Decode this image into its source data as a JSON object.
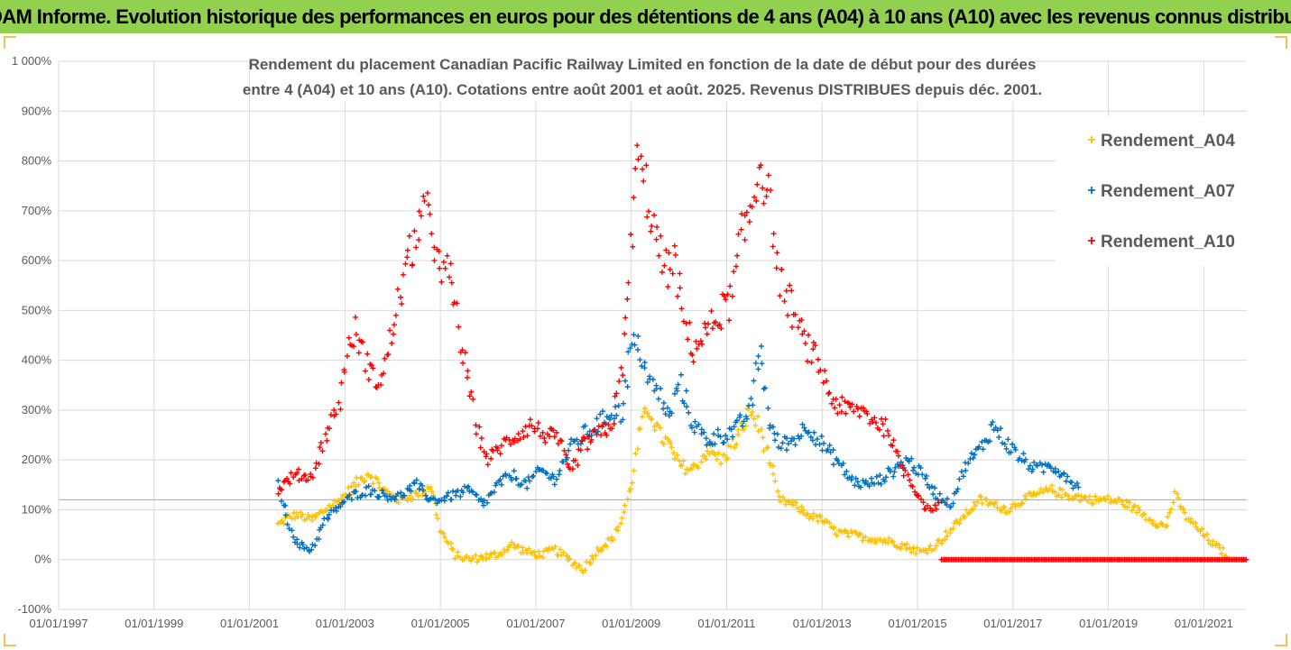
{
  "banner": {
    "title": "ADAM Informe. Evolution historique des performances en euros pour des détentions de 4 ans (A04) à 10 ans (A10) avec les revenus connus distribués"
  },
  "colors": {
    "banner_bg": "#92d050",
    "A04": "#ffc000",
    "A07": "#0070c0",
    "A10": "#ff0000",
    "reference_line": "#a6a6a6",
    "text": "#595959"
  },
  "chart_data": {
    "type": "scatter",
    "title_lines": [
      "Rendement du placement Canadian Pacific Railway Limited en fonction de la date de début pour des durées",
      "entre 4 (A04) et 10 ans (A10). Cotations entre août 2001 et août. 2025. Revenus DISTRIBUES depuis déc. 2001."
    ],
    "ytick_labels": [
      "1 000%",
      "900%",
      "800%",
      "700%",
      "600%",
      "500%",
      "400%",
      "300%",
      "200%",
      "100%",
      "0%",
      "-100%"
    ],
    "ytick_values": [
      1000,
      900,
      800,
      700,
      600,
      500,
      400,
      300,
      200,
      100,
      0,
      -100
    ],
    "xtick_labels": [
      "01/01/1997",
      "01/01/1999",
      "01/01/2001",
      "01/01/2003",
      "01/01/2005",
      "01/01/2007",
      "01/01/2009",
      "01/01/2011",
      "01/01/2013",
      "01/01/2015",
      "01/01/2017",
      "01/01/2019",
      "01/01/2021"
    ],
    "xtick_years": [
      1997,
      1999,
      2001,
      2003,
      2005,
      2007,
      2009,
      2011,
      2013,
      2015,
      2017,
      2019,
      2021
    ],
    "xlim": [
      1997,
      2021.9
    ],
    "ylim": [
      -100,
      1000
    ],
    "grid": "vertical and horizontal",
    "legend_position": "right",
    "reference_line_y": 120,
    "series": [
      {
        "name": "Rendement_A04",
        "color": "#ffc000",
        "x": [
          2001.6,
          2001.8,
          2002.0,
          2002.3,
          2002.6,
          2002.9,
          2003.2,
          2003.5,
          2003.8,
          2004.1,
          2004.5,
          2004.8,
          2005.0,
          2005.3,
          2005.6,
          2005.9,
          2006.2,
          2006.5,
          2006.8,
          2007.1,
          2007.4,
          2007.7,
          2008.0,
          2008.3,
          2008.6,
          2008.8,
          2009.0,
          2009.2,
          2009.4,
          2009.6,
          2009.8,
          2010.0,
          2010.3,
          2010.6,
          2010.9,
          2011.2,
          2011.5,
          2011.7,
          2011.9,
          2012.1,
          2012.4,
          2012.7,
          2013.0,
          2013.3,
          2013.6,
          2013.9,
          2014.2,
          2014.5,
          2014.8,
          2015.1,
          2015.4,
          2015.7,
          2016.0,
          2016.3,
          2016.6,
          2016.9,
          2017.2,
          2017.5,
          2017.8,
          2018.1,
          2018.4,
          2018.7,
          2019.0,
          2019.3,
          2019.6,
          2019.9,
          2020.2,
          2020.4,
          2020.6,
          2020.9,
          2021.2,
          2021.5
        ],
        "y": [
          70,
          85,
          90,
          80,
          100,
          120,
          150,
          175,
          140,
          120,
          130,
          150,
          60,
          10,
          0,
          5,
          10,
          30,
          15,
          10,
          20,
          0,
          -20,
          20,
          40,
          80,
          150,
          270,
          300,
          250,
          230,
          190,
          180,
          220,
          200,
          240,
          300,
          260,
          200,
          120,
          110,
          90,
          80,
          55,
          50,
          45,
          40,
          35,
          25,
          15,
          30,
          60,
          90,
          120,
          110,
          100,
          120,
          130,
          140,
          130,
          125,
          120,
          120,
          115,
          100,
          80,
          65,
          130,
          90,
          60,
          30,
          10
        ]
      },
      {
        "name": "Rendement_A07",
        "color": "#0070c0",
        "x": [
          2001.6,
          2001.8,
          2002.0,
          2002.3,
          2002.6,
          2002.9,
          2003.2,
          2003.5,
          2003.8,
          2004.1,
          2004.5,
          2004.8,
          2005.0,
          2005.3,
          2005.6,
          2005.9,
          2006.2,
          2006.5,
          2006.8,
          2007.1,
          2007.4,
          2007.7,
          2008.0,
          2008.3,
          2008.6,
          2008.8,
          2009.0,
          2009.2,
          2009.4,
          2009.6,
          2009.8,
          2010.0,
          2010.3,
          2010.6,
          2010.9,
          2011.2,
          2011.5,
          2011.7,
          2011.9,
          2012.1,
          2012.4,
          2012.7,
          2013.0,
          2013.3,
          2013.6,
          2013.9,
          2014.2,
          2014.5,
          2014.8,
          2015.1,
          2015.4,
          2015.7,
          2016.0,
          2016.3,
          2016.6,
          2016.9,
          2017.2,
          2017.5,
          2017.8,
          2018.1,
          2018.4
        ],
        "y": [
          150,
          80,
          30,
          20,
          80,
          110,
          130,
          140,
          130,
          125,
          150,
          120,
          120,
          130,
          140,
          110,
          150,
          170,
          150,
          180,
          160,
          220,
          250,
          270,
          300,
          290,
          430,
          420,
          350,
          330,
          280,
          360,
          270,
          240,
          250,
          260,
          300,
          430,
          270,
          230,
          240,
          270,
          230,
          200,
          160,
          150,
          160,
          180,
          200,
          170,
          130,
          110,
          190,
          220,
          270,
          230,
          200,
          180,
          190,
          170,
          140
        ]
      },
      {
        "name": "Rendement_A10",
        "color": "#ff0000",
        "x": [
          2001.6,
          2001.8,
          2002.0,
          2002.3,
          2002.6,
          2002.9,
          2003.0,
          2003.2,
          2003.4,
          2003.6,
          2003.8,
          2004.0,
          2004.2,
          2004.4,
          2004.6,
          2004.8,
          2005.0,
          2005.2,
          2005.4,
          2005.6,
          2005.8,
          2006.0,
          2006.3,
          2006.6,
          2006.9,
          2007.2,
          2007.5,
          2007.7,
          2008.0,
          2008.3,
          2008.6,
          2008.8,
          2008.95,
          2009.1,
          2009.3,
          2009.5,
          2009.7,
          2009.9,
          2010.1,
          2010.3,
          2010.6,
          2010.9,
          2011.1,
          2011.3,
          2011.5,
          2011.7,
          2011.9,
          2012.1,
          2012.3,
          2012.6,
          2012.9,
          2013.2,
          2013.5,
          2013.8,
          2014.1,
          2014.4,
          2014.6,
          2014.9,
          2015.2,
          2015.45
        ],
        "y": [
          140,
          160,
          170,
          165,
          250,
          320,
          400,
          460,
          410,
          360,
          370,
          460,
          550,
          620,
          680,
          700,
          560,
          580,
          450,
          350,
          250,
          200,
          230,
          250,
          270,
          250,
          240,
          170,
          230,
          250,
          270,
          380,
          560,
          800,
          750,
          650,
          580,
          600,
          480,
          420,
          460,
          500,
          520,
          640,
          700,
          800,
          720,
          560,
          520,
          440,
          400,
          320,
          300,
          300,
          280,
          260,
          200,
          150,
          100,
          110
        ]
      },
      {
        "name": "Rendement_A10 (zero baseline)",
        "color": "#ff0000",
        "x_start": 2015.5,
        "x_end": 2021.9,
        "y": 0
      }
    ]
  }
}
